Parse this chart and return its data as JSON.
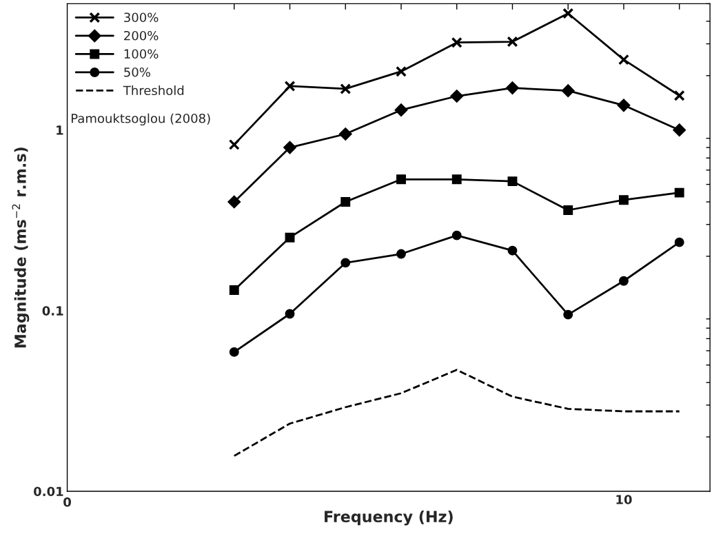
{
  "chart_data": {
    "type": "line",
    "xlabel": "Frequency (Hz)",
    "ylabel": "Magnitude (ms$^{−2}$ r.m.s)",
    "categories": [
      null,
      null,
      null,
      null,
      null,
      null,
      null,
      "10",
      null
    ],
    "series": [
      {
        "name": "300%",
        "color": "#000000",
        "marker": "cross",
        "values": [
          0.83,
          1.75,
          1.69,
          2.11,
          3.05,
          3.08,
          4.42,
          2.45,
          1.55
        ]
      },
      {
        "name": "200%",
        "color": "#000000",
        "marker": "diamond",
        "values": [
          0.4,
          0.8,
          0.95,
          1.29,
          1.54,
          1.71,
          1.65,
          1.37,
          1.0
        ]
      },
      {
        "name": "100%",
        "color": "#000000",
        "marker": "square",
        "values": [
          0.13,
          0.254,
          0.4,
          0.533,
          0.533,
          0.52,
          0.36,
          0.41,
          0.45
        ]
      },
      {
        "name": "50%",
        "color": "#000000",
        "marker": "circle",
        "values": [
          0.059,
          0.096,
          0.184,
          0.206,
          0.261,
          0.215,
          0.095,
          0.146,
          0.239
        ]
      },
      {
        "name": "Threshold",
        "color": "#000000",
        "marker": "none",
        "line_style": "dashed",
        "values": [
          0.0157,
          0.0237,
          0.0292,
          0.0349,
          0.047,
          0.0334,
          0.0286,
          0.0277,
          0.0277
        ]
      }
    ],
    "log": "y",
    "ylim": [
      0.01,
      5
    ],
    "yticks": [
      0.01,
      0.1,
      1
    ],
    "grid": false,
    "legend": "top left",
    "annotations": [
      "Pamouktsoglou (2008)",
      "0"
    ]
  }
}
